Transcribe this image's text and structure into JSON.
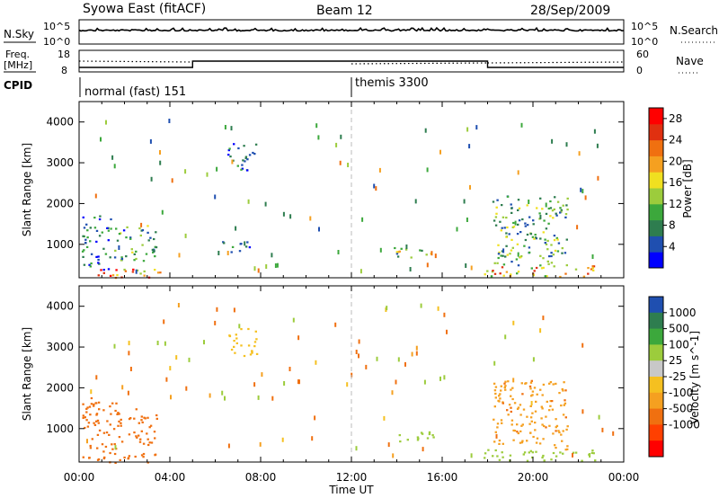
{
  "header": {
    "title": "Syowa East (fitACF)",
    "beam": "Beam 12",
    "date": "28/Sep/2009"
  },
  "aux_panels": {
    "nsky_label": "N.Sky",
    "nsearch_label": "N.Search",
    "freq_label_line1": "Freq.",
    "freq_label_line2": "[MHz]",
    "nave_label": "Nave",
    "cpid_label": "CPID",
    "noise_left_ticks": [
      "10^5",
      "10^0"
    ],
    "noise_right_ticks": [
      "10^5",
      "10^0"
    ],
    "freq_left_ticks": [
      "18",
      "8"
    ],
    "nave_right_ticks": [
      "60",
      "0"
    ]
  },
  "cpid_segments": [
    {
      "name": "normal (fast) 151",
      "start_hour": 0
    },
    {
      "name": "themis 3300",
      "start_hour": 12
    }
  ],
  "colors": {
    "power_scale": [
      "#0000ff",
      "#1f4fb0",
      "#2e7d4f",
      "#3ca83c",
      "#9ccc3c",
      "#f0e020",
      "#f5a020",
      "#f07010",
      "#e03010",
      "#ff0000"
    ],
    "velocity_scale": [
      "#1f4fb0",
      "#2e7d4f",
      "#3ca83c",
      "#9ccc3c",
      "#c8c8c8",
      "#f5c020",
      "#f5a020",
      "#f07010",
      "#ff4000",
      "#ff0000"
    ]
  },
  "chart_data": [
    {
      "type": "heatmap",
      "title": "Syowa East (fitACF)",
      "subtitle": "Beam 12",
      "xlabel": "Time UT",
      "ylabel": "Slant Range [km]",
      "xlim": [
        "00:00",
        "24:00"
      ],
      "ylim": [
        180,
        4500
      ],
      "x_ticks": [
        "00:00",
        "04:00",
        "08:00",
        "12:00",
        "16:00",
        "20:00",
        "00:00"
      ],
      "y_ticks": [
        1000,
        2000,
        3000,
        4000
      ],
      "colorbar_label": "Power [dB]",
      "colorbar_ticks": [
        4,
        8,
        12,
        16,
        20,
        24,
        28
      ],
      "colorbar_range": [
        0,
        30
      ],
      "echo_regions": [
        {
          "t_start": 0.1,
          "t_end": 3.6,
          "r_start": 180,
          "r_end": 420,
          "value": 22
        },
        {
          "t_start": 0.1,
          "t_end": 1.4,
          "r_start": 400,
          "r_end": 1800,
          "value": 7
        },
        {
          "t_start": 1.5,
          "t_end": 3.4,
          "r_start": 600,
          "r_end": 1500,
          "value": 9
        },
        {
          "t_start": 6.5,
          "t_end": 7.8,
          "r_start": 2800,
          "r_end": 3500,
          "value": 5
        },
        {
          "t_start": 6.3,
          "t_end": 7.6,
          "r_start": 800,
          "r_end": 1100,
          "value": 6
        },
        {
          "t_start": 13.8,
          "t_end": 15.8,
          "r_start": 700,
          "r_end": 950,
          "value": 12
        },
        {
          "t_start": 17.8,
          "t_end": 22.8,
          "r_start": 220,
          "r_end": 500,
          "value": 18
        },
        {
          "t_start": 18.2,
          "t_end": 21.5,
          "r_start": 500,
          "r_end": 2200,
          "value": 10
        }
      ]
    },
    {
      "type": "heatmap",
      "xlabel": "Time UT",
      "ylabel": "Slant Range [km]",
      "xlim": [
        "00:00",
        "24:00"
      ],
      "ylim": [
        180,
        4500
      ],
      "x_ticks": [
        "00:00",
        "04:00",
        "08:00",
        "12:00",
        "16:00",
        "20:00",
        "00:00"
      ],
      "y_ticks": [
        1000,
        2000,
        3000,
        4000
      ],
      "colorbar_label": "Velocity [m s^-1]",
      "colorbar_ticks": [
        "1000",
        "500",
        "100",
        "25",
        "-25",
        "-100",
        "-500",
        "-1000"
      ],
      "echo_regions": [
        {
          "t_start": 0.1,
          "t_end": 3.6,
          "r_start": 180,
          "r_end": 420,
          "value": -150
        },
        {
          "t_start": 0.1,
          "t_end": 1.6,
          "r_start": 400,
          "r_end": 1800,
          "value": -300
        },
        {
          "t_start": 1.5,
          "t_end": 3.4,
          "r_start": 600,
          "r_end": 1500,
          "value": -200
        },
        {
          "t_start": 6.5,
          "t_end": 7.8,
          "r_start": 2800,
          "r_end": 3500,
          "value": 0
        },
        {
          "t_start": 13.8,
          "t_end": 15.8,
          "r_start": 700,
          "r_end": 950,
          "value": 300
        },
        {
          "t_start": 17.8,
          "t_end": 22.8,
          "r_start": 220,
          "r_end": 500,
          "value": 200
        },
        {
          "t_start": 18.2,
          "t_end": 21.5,
          "r_start": 500,
          "r_end": 2200,
          "value": -80
        }
      ]
    }
  ]
}
